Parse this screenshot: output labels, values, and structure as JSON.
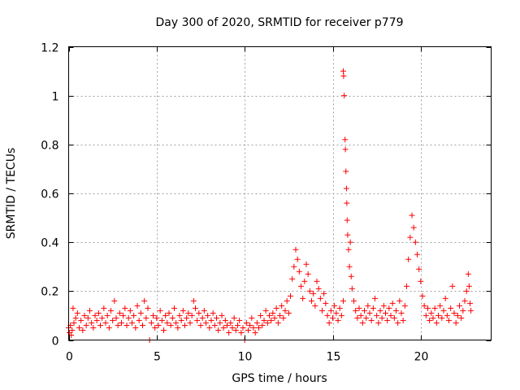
{
  "chart_data": {
    "type": "scatter",
    "title": "Day 300 of 2020, SRMTID for receiver p779",
    "xlabel": "GPS time / hours",
    "ylabel": "SRMTID / TECUs",
    "xlim": [
      0,
      24
    ],
    "ylim": [
      0,
      1.2
    ],
    "xticks": [
      0,
      5,
      10,
      15,
      20
    ],
    "xtick_labels": [
      "0",
      "5",
      "10",
      "15",
      "20"
    ],
    "yticks": [
      0,
      0.2,
      0.4,
      0.6,
      0.8,
      1.0,
      1.2
    ],
    "ytick_labels": [
      "0",
      "0.2",
      "0.4",
      "0.6",
      "0.8",
      "1",
      "1.2"
    ],
    "grid": true,
    "marker": "+",
    "color": "#ff0000",
    "series": [
      {
        "name": "SRMTID p779",
        "points": [
          [
            0.0,
            0.05
          ],
          [
            0.05,
            0.03
          ],
          [
            0.1,
            0.06
          ],
          [
            0.15,
            0.02
          ],
          [
            0.2,
            0.04
          ],
          [
            0.25,
            0.13
          ],
          [
            0.3,
            0.07
          ],
          [
            0.4,
            0.09
          ],
          [
            0.5,
            0.11
          ],
          [
            0.6,
            0.05
          ],
          [
            0.7,
            0.08
          ],
          [
            0.8,
            0.04
          ],
          [
            0.9,
            0.1
          ],
          [
            1.0,
            0.06
          ],
          [
            1.1,
            0.09
          ],
          [
            1.2,
            0.12
          ],
          [
            1.3,
            0.07
          ],
          [
            1.4,
            0.05
          ],
          [
            1.5,
            0.1
          ],
          [
            1.6,
            0.08
          ],
          [
            1.7,
            0.11
          ],
          [
            1.8,
            0.06
          ],
          [
            1.9,
            0.09
          ],
          [
            2.0,
            0.13
          ],
          [
            2.1,
            0.07
          ],
          [
            2.2,
            0.1
          ],
          [
            2.3,
            0.05
          ],
          [
            2.4,
            0.12
          ],
          [
            2.5,
            0.08
          ],
          [
            2.6,
            0.16
          ],
          [
            2.7,
            0.09
          ],
          [
            2.8,
            0.06
          ],
          [
            2.9,
            0.11
          ],
          [
            3.0,
            0.07
          ],
          [
            3.1,
            0.1
          ],
          [
            3.2,
            0.13
          ],
          [
            3.3,
            0.06
          ],
          [
            3.4,
            0.09
          ],
          [
            3.5,
            0.12
          ],
          [
            3.6,
            0.07
          ],
          [
            3.7,
            0.1
          ],
          [
            3.8,
            0.05
          ],
          [
            3.9,
            0.14
          ],
          [
            4.0,
            0.08
          ],
          [
            4.1,
            0.11
          ],
          [
            4.2,
            0.06
          ],
          [
            4.3,
            0.16
          ],
          [
            4.4,
            0.09
          ],
          [
            4.5,
            0.13
          ],
          [
            4.6,
            0.0
          ],
          [
            4.7,
            0.07
          ],
          [
            4.8,
            0.1
          ],
          [
            4.9,
            0.05
          ],
          [
            5.0,
            0.09
          ],
          [
            5.1,
            0.06
          ],
          [
            5.2,
            0.12
          ],
          [
            5.3,
            0.08
          ],
          [
            5.4,
            0.04
          ],
          [
            5.5,
            0.1
          ],
          [
            5.6,
            0.07
          ],
          [
            5.7,
            0.11
          ],
          [
            5.8,
            0.06
          ],
          [
            5.9,
            0.09
          ],
          [
            6.0,
            0.13
          ],
          [
            6.1,
            0.07
          ],
          [
            6.2,
            0.05
          ],
          [
            6.3,
            0.1
          ],
          [
            6.4,
            0.08
          ],
          [
            6.5,
            0.12
          ],
          [
            6.6,
            0.06
          ],
          [
            6.7,
            0.09
          ],
          [
            6.8,
            0.11
          ],
          [
            6.9,
            0.07
          ],
          [
            7.0,
            0.1
          ],
          [
            7.1,
            0.16
          ],
          [
            7.2,
            0.13
          ],
          [
            7.3,
            0.08
          ],
          [
            7.4,
            0.11
          ],
          [
            7.5,
            0.06
          ],
          [
            7.6,
            0.09
          ],
          [
            7.7,
            0.12
          ],
          [
            7.8,
            0.07
          ],
          [
            7.9,
            0.1
          ],
          [
            8.0,
            0.05
          ],
          [
            8.1,
            0.08
          ],
          [
            8.2,
            0.11
          ],
          [
            8.3,
            0.06
          ],
          [
            8.4,
            0.09
          ],
          [
            8.5,
            0.04
          ],
          [
            8.6,
            0.07
          ],
          [
            8.7,
            0.1
          ],
          [
            8.8,
            0.05
          ],
          [
            8.9,
            0.08
          ],
          [
            9.0,
            0.06
          ],
          [
            9.1,
            0.03
          ],
          [
            9.2,
            0.07
          ],
          [
            9.3,
            0.05
          ],
          [
            9.4,
            0.09
          ],
          [
            9.5,
            0.04
          ],
          [
            9.6,
            0.06
          ],
          [
            9.7,
            0.08
          ],
          [
            9.8,
            0.03
          ],
          [
            9.9,
            0.05
          ],
          [
            10.0,
            0.0
          ],
          [
            10.1,
            0.07
          ],
          [
            10.2,
            0.04
          ],
          [
            10.3,
            0.06
          ],
          [
            10.4,
            0.09
          ],
          [
            10.5,
            0.05
          ],
          [
            10.6,
            0.03
          ],
          [
            10.7,
            0.07
          ],
          [
            10.8,
            0.05
          ],
          [
            10.9,
            0.1
          ],
          [
            11.0,
            0.06
          ],
          [
            11.1,
            0.08
          ],
          [
            11.2,
            0.12
          ],
          [
            11.3,
            0.07
          ],
          [
            11.4,
            0.1
          ],
          [
            11.5,
            0.08
          ],
          [
            11.6,
            0.11
          ],
          [
            11.7,
            0.09
          ],
          [
            11.8,
            0.13
          ],
          [
            11.9,
            0.07
          ],
          [
            12.0,
            0.1
          ],
          [
            12.1,
            0.14
          ],
          [
            12.2,
            0.09
          ],
          [
            12.3,
            0.12
          ],
          [
            12.4,
            0.16
          ],
          [
            12.5,
            0.11
          ],
          [
            12.6,
            0.18
          ],
          [
            12.7,
            0.25
          ],
          [
            12.8,
            0.3
          ],
          [
            12.9,
            0.37
          ],
          [
            13.0,
            0.33
          ],
          [
            13.1,
            0.28
          ],
          [
            13.2,
            0.22
          ],
          [
            13.3,
            0.17
          ],
          [
            13.4,
            0.24
          ],
          [
            13.5,
            0.31
          ],
          [
            13.6,
            0.27
          ],
          [
            13.7,
            0.2
          ],
          [
            13.8,
            0.16
          ],
          [
            13.9,
            0.19
          ],
          [
            14.0,
            0.14
          ],
          [
            14.1,
            0.24
          ],
          [
            14.2,
            0.21
          ],
          [
            14.3,
            0.17
          ],
          [
            14.4,
            0.12
          ],
          [
            14.5,
            0.19
          ],
          [
            14.6,
            0.15
          ],
          [
            14.7,
            0.1
          ],
          [
            14.8,
            0.07
          ],
          [
            14.9,
            0.12
          ],
          [
            15.0,
            0.09
          ],
          [
            15.1,
            0.14
          ],
          [
            15.2,
            0.11
          ],
          [
            15.3,
            0.08
          ],
          [
            15.4,
            0.13
          ],
          [
            15.5,
            0.1
          ],
          [
            15.6,
            0.16
          ],
          [
            15.6,
            1.1
          ],
          [
            15.62,
            1.08
          ],
          [
            15.65,
            1.0
          ],
          [
            15.7,
            0.82
          ],
          [
            15.72,
            0.78
          ],
          [
            15.75,
            0.69
          ],
          [
            15.78,
            0.62
          ],
          [
            15.8,
            0.56
          ],
          [
            15.82,
            0.49
          ],
          [
            15.85,
            0.43
          ],
          [
            15.9,
            0.37
          ],
          [
            15.95,
            0.3
          ],
          [
            16.0,
            0.4
          ],
          [
            16.05,
            0.26
          ],
          [
            16.1,
            0.21
          ],
          [
            16.2,
            0.16
          ],
          [
            16.3,
            0.12
          ],
          [
            16.4,
            0.09
          ],
          [
            16.5,
            0.13
          ],
          [
            16.6,
            0.1
          ],
          [
            16.7,
            0.07
          ],
          [
            16.8,
            0.12
          ],
          [
            16.9,
            0.09
          ],
          [
            17.0,
            0.14
          ],
          [
            17.1,
            0.11
          ],
          [
            17.2,
            0.08
          ],
          [
            17.3,
            0.13
          ],
          [
            17.4,
            0.17
          ],
          [
            17.5,
            0.1
          ],
          [
            17.6,
            0.07
          ],
          [
            17.7,
            0.12
          ],
          [
            17.8,
            0.09
          ],
          [
            17.9,
            0.14
          ],
          [
            18.0,
            0.11
          ],
          [
            18.1,
            0.08
          ],
          [
            18.2,
            0.13
          ],
          [
            18.3,
            0.1
          ],
          [
            18.4,
            0.15
          ],
          [
            18.5,
            0.09
          ],
          [
            18.6,
            0.12
          ],
          [
            18.7,
            0.07
          ],
          [
            18.8,
            0.16
          ],
          [
            18.9,
            0.11
          ],
          [
            19.0,
            0.08
          ],
          [
            19.1,
            0.14
          ],
          [
            19.2,
            0.22
          ],
          [
            19.3,
            0.33
          ],
          [
            19.4,
            0.42
          ],
          [
            19.5,
            0.51
          ],
          [
            19.6,
            0.46
          ],
          [
            19.7,
            0.4
          ],
          [
            19.8,
            0.35
          ],
          [
            19.9,
            0.29
          ],
          [
            20.0,
            0.24
          ],
          [
            20.1,
            0.18
          ],
          [
            20.2,
            0.14
          ],
          [
            20.3,
            0.1
          ],
          [
            20.4,
            0.13
          ],
          [
            20.5,
            0.08
          ],
          [
            20.6,
            0.11
          ],
          [
            20.7,
            0.09
          ],
          [
            20.8,
            0.13
          ],
          [
            20.9,
            0.07
          ],
          [
            21.0,
            0.1
          ],
          [
            21.1,
            0.14
          ],
          [
            21.2,
            0.09
          ],
          [
            21.3,
            0.12
          ],
          [
            21.4,
            0.17
          ],
          [
            21.5,
            0.1
          ],
          [
            21.6,
            0.08
          ],
          [
            21.7,
            0.13
          ],
          [
            21.8,
            0.22
          ],
          [
            21.9,
            0.11
          ],
          [
            22.0,
            0.07
          ],
          [
            22.1,
            0.1
          ],
          [
            22.2,
            0.14
          ],
          [
            22.3,
            0.09
          ],
          [
            22.4,
            0.12
          ],
          [
            22.5,
            0.16
          ],
          [
            22.6,
            0.2
          ],
          [
            22.7,
            0.27
          ],
          [
            22.75,
            0.22
          ],
          [
            22.8,
            0.15
          ],
          [
            22.85,
            0.12
          ]
        ]
      }
    ]
  }
}
